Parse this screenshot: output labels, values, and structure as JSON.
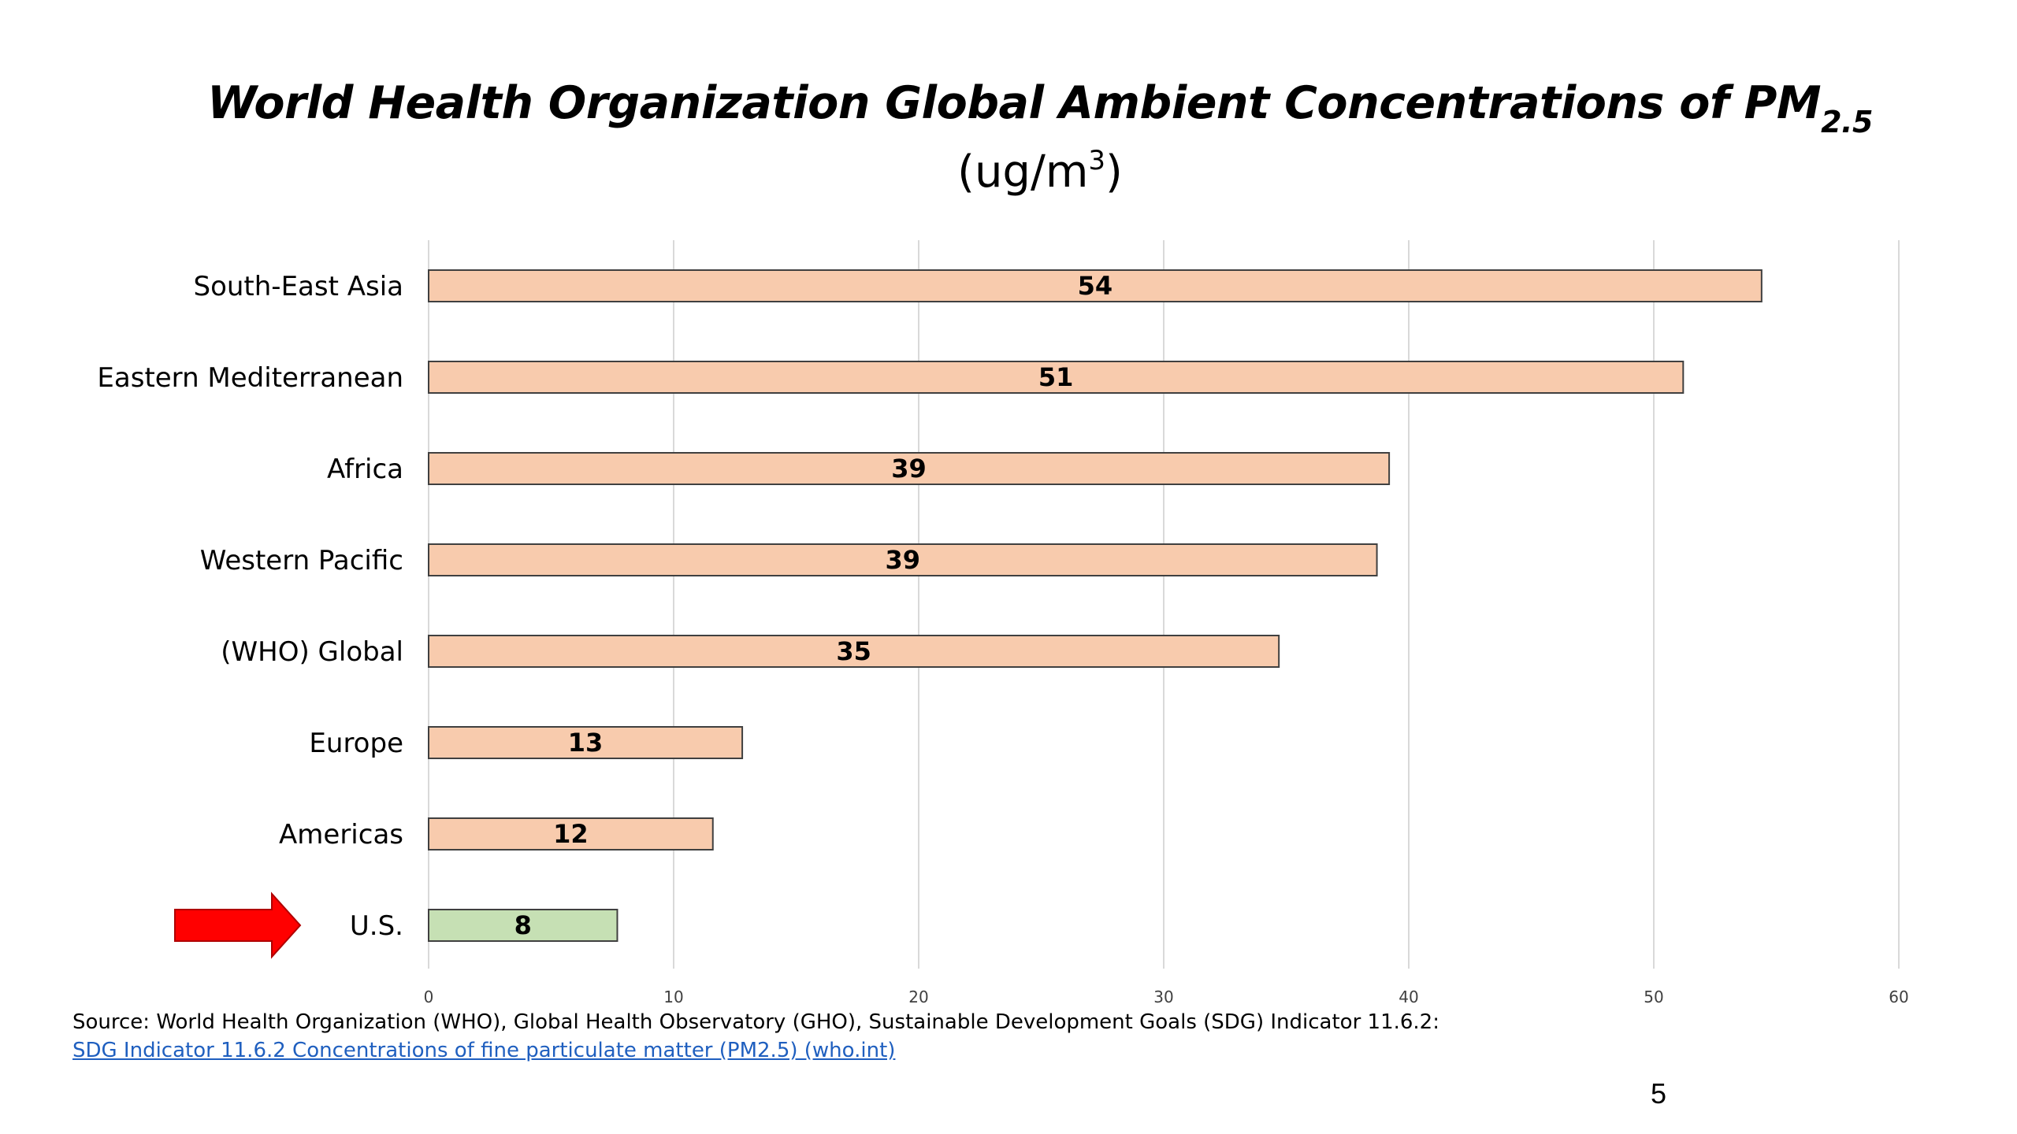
{
  "chart_data": {
    "type": "bar",
    "orientation": "horizontal",
    "title": "World Health Organization Global Ambient Concentrations of PM",
    "title_subscript": "2.5",
    "subtitle_prefix": "(ug/m",
    "subtitle_sup": "3",
    "subtitle_suffix": ")",
    "categories": [
      "South-East Asia",
      "Eastern Mediterranean",
      "Africa",
      "Western Pacific",
      "(WHO) Global",
      "Europe",
      "Americas",
      "U.S."
    ],
    "values": [
      54.4,
      51.2,
      39.2,
      38.7,
      34.7,
      12.8,
      11.6,
      7.7
    ],
    "data_labels": [
      "54",
      "51",
      "39",
      "39",
      "35",
      "13",
      "12",
      "8"
    ],
    "highlight_category": "U.S.",
    "xlim": [
      0,
      60
    ],
    "xticks": [
      0,
      10,
      20,
      30,
      40,
      50,
      60
    ],
    "grid": "vertical",
    "colors": {
      "bar": "#f8cbad",
      "bar_highlight": "#c6e0b4",
      "bar_border": "#404040",
      "grid": "#d9d9d9",
      "arrow": "#ff0000"
    }
  },
  "source": {
    "text": "Source:  World Health Organization (WHO), Global Health Observatory (GHO), Sustainable Development Goals (SDG) Indicator 11.6.2:",
    "link_text": "SDG Indicator 11.6.2 Concentrations of fine particulate matter (PM2.5) (who.int)"
  },
  "page_number": "5"
}
